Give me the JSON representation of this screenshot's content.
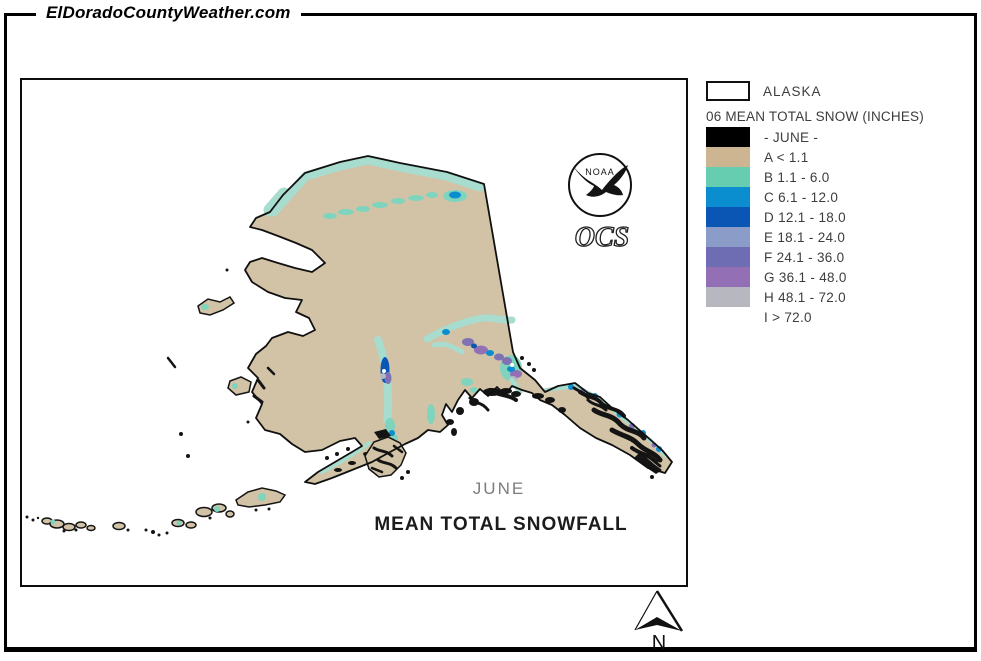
{
  "site": {
    "title": "ElDoradoCountyWeather.com"
  },
  "map": {
    "labels": {
      "month": "JUNE",
      "title": "MEAN TOTAL SNOWFALL"
    },
    "logo": {
      "org": "NOAA",
      "unit": "OCS"
    }
  },
  "legend": {
    "region_label": "ALASKA",
    "title": "06 MEAN TOTAL SNOW (INCHES)",
    "entries": [
      {
        "label": "- JUNE -",
        "color": "#000000"
      },
      {
        "label": "A < 1.1",
        "color": "#cdb592"
      },
      {
        "label": "B 1.1 - 6.0",
        "color": "#66cdb1"
      },
      {
        "label": "C 6.1 - 12.0",
        "color": "#0b8ecf"
      },
      {
        "label": "D 12.1 - 18.0",
        "color": "#0a56b4"
      },
      {
        "label": "E 18.1 - 24.0",
        "color": "#8c9cc8"
      },
      {
        "label": "F 24.1 - 36.0",
        "color": "#6e6db4"
      },
      {
        "label": "G 36.1 - 48.0",
        "color": "#9370b6"
      },
      {
        "label": "H 48.1 - 72.0",
        "color": "#b7b7bf"
      },
      {
        "label": "I > 72.0",
        "color": "#ffffff"
      }
    ]
  },
  "compass": {
    "label": "N"
  },
  "map_colors": {
    "land": "#d2c2a6",
    "coast_fringe": "#a8dcce",
    "outline": "#101010"
  }
}
